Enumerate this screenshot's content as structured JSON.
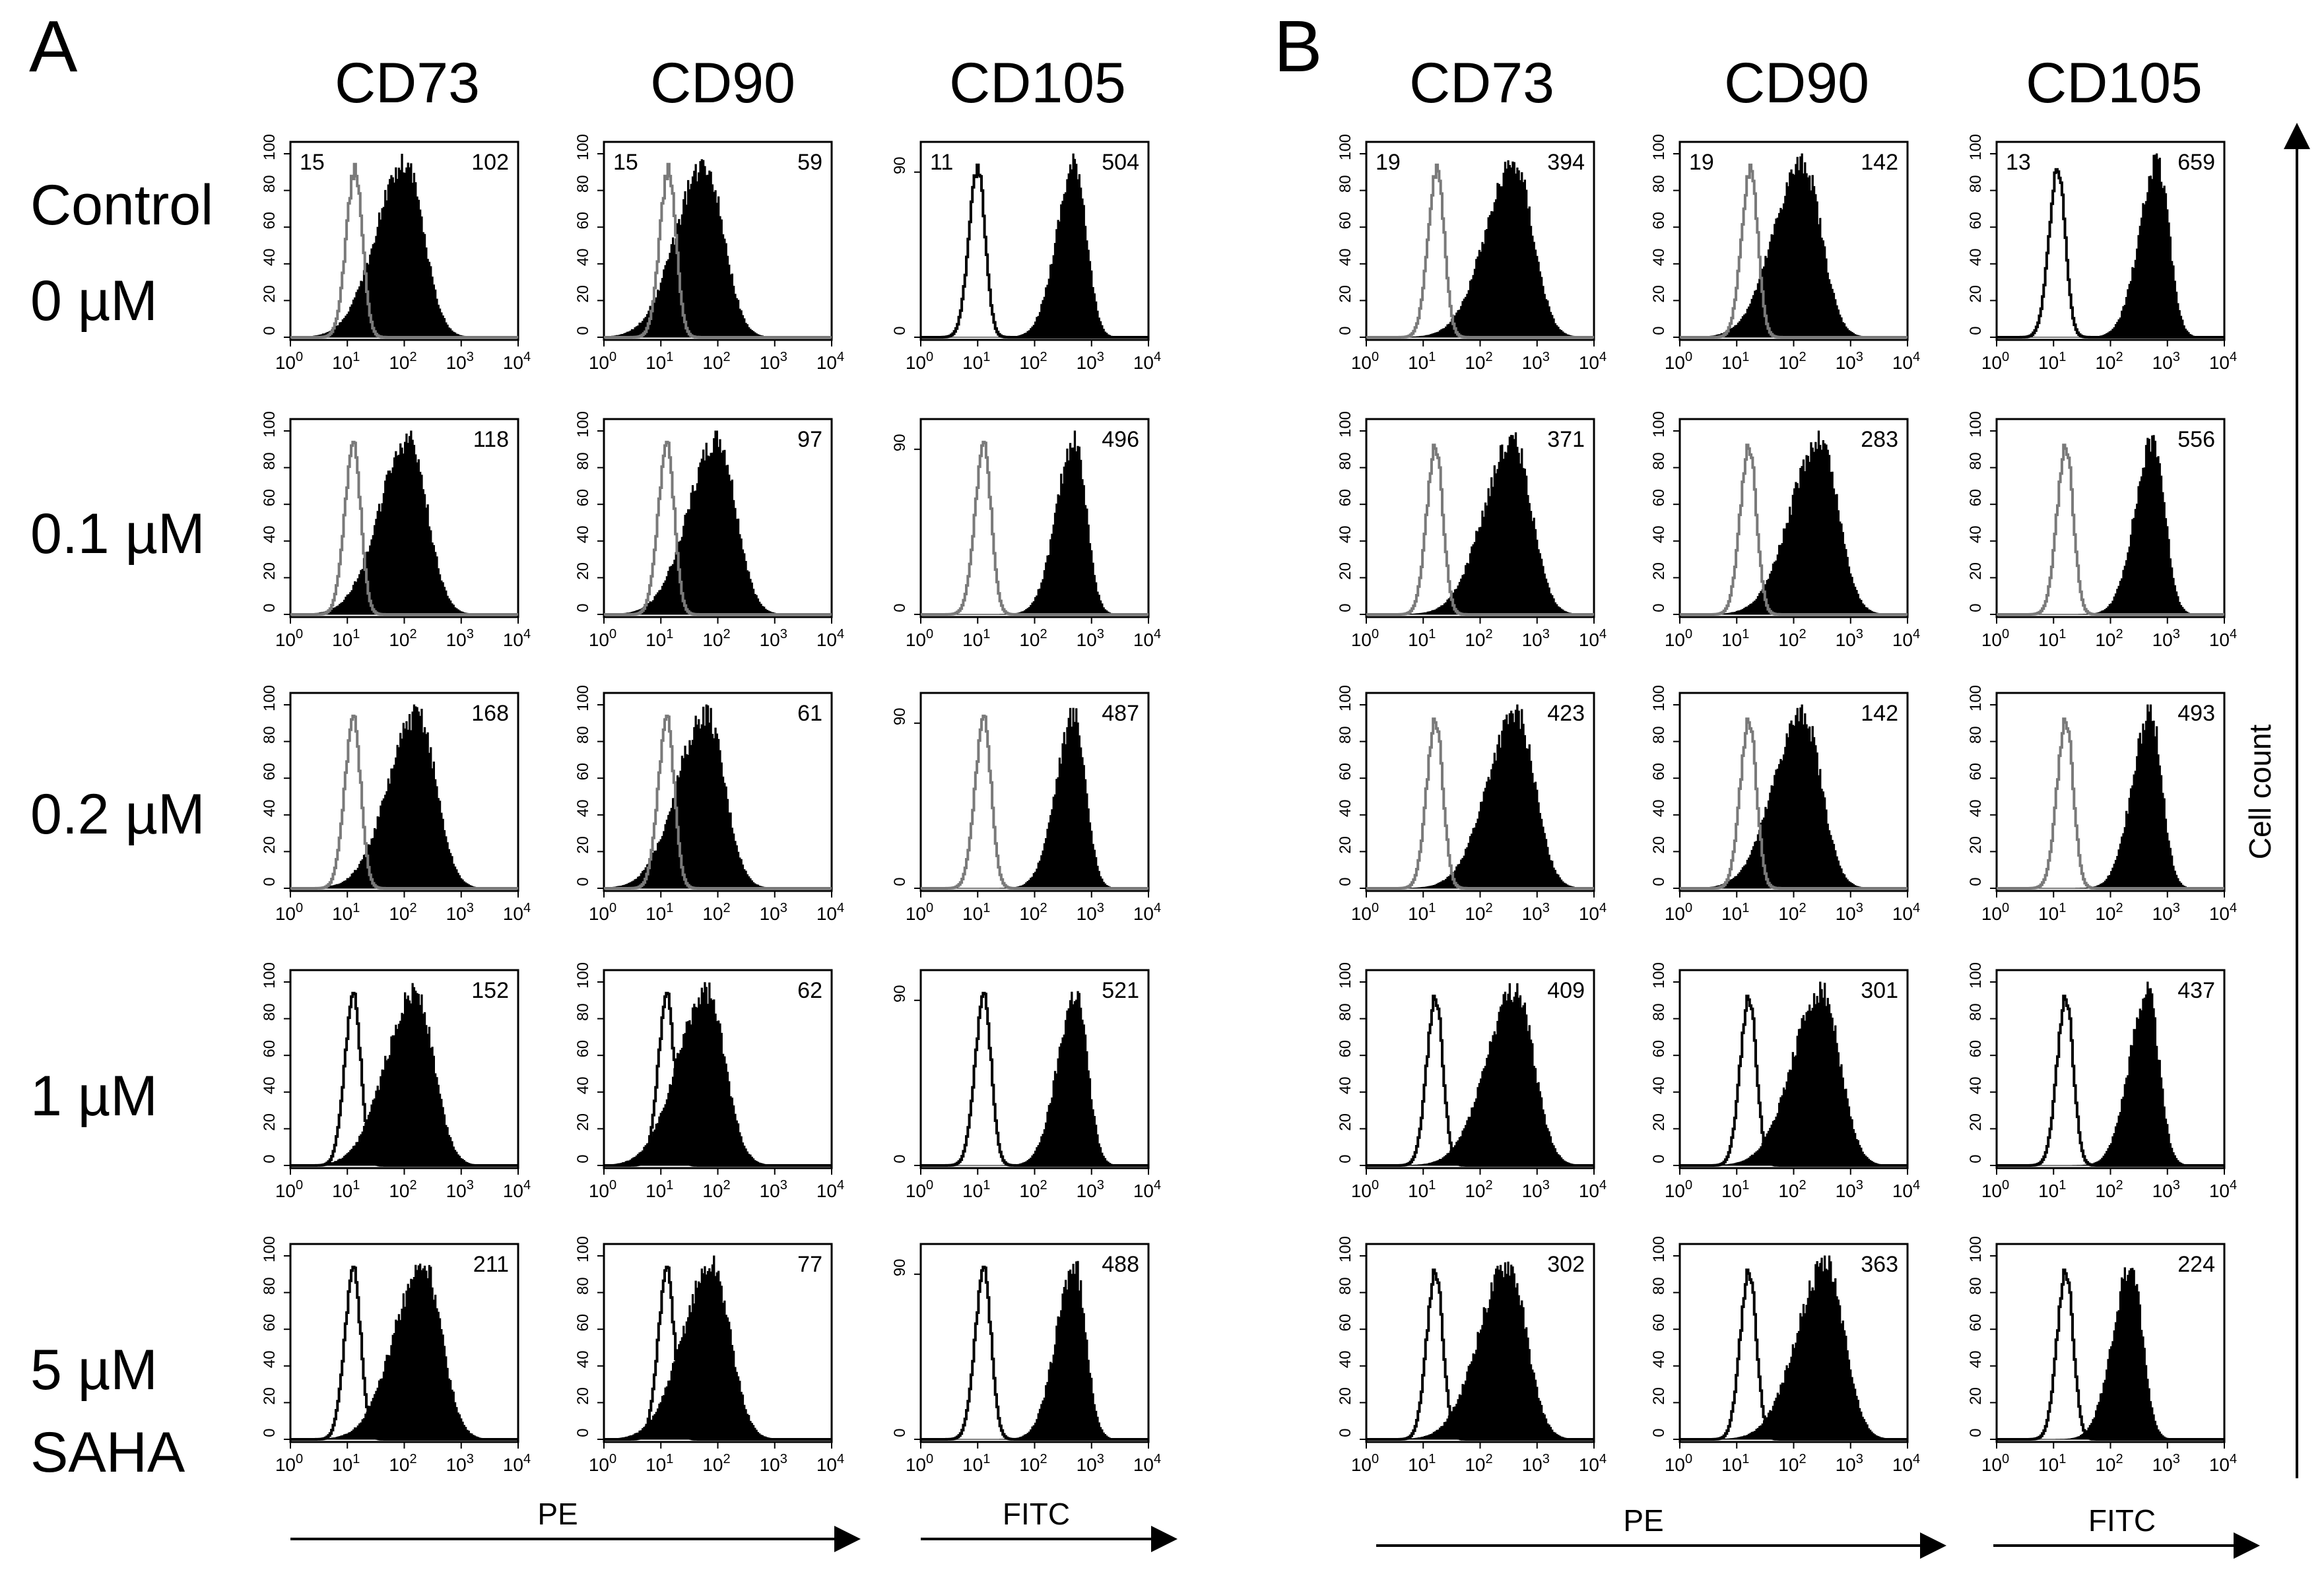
{
  "panels": [
    {
      "letter": "A",
      "columns": [
        "CD73",
        "CD90",
        "CD105"
      ]
    },
    {
      "letter": "B",
      "columns": [
        "CD73",
        "CD90",
        "CD105"
      ]
    }
  ],
  "row_labels": [
    [
      "Control",
      "0 µM"
    ],
    [
      "0.1 µM"
    ],
    [
      "0.2 µM"
    ],
    [
      "1 µM"
    ],
    [
      "5 µM",
      "SAHA"
    ]
  ],
  "axis_labels": {
    "pe": "PE",
    "fitc": "FITC",
    "cell_count": "Cell count",
    "x_ticks": [
      "0",
      "1",
      "2",
      "3",
      "4"
    ],
    "y_ticks_pe": [
      "0",
      "20",
      "40",
      "60",
      "80",
      "100"
    ],
    "y_ticks_cd105": [
      "0",
      "90"
    ]
  },
  "colors": {
    "filled": "#000000",
    "control_gray": "#7a7a7a",
    "control_black": "#000000",
    "frame": "#000000",
    "background": "#ffffff"
  },
  "chart_data": {
    "type": "histogram-grid",
    "x_axis": {
      "scale": "log10",
      "range": [
        1,
        10000
      ]
    },
    "y_axis": {
      "label": "Cell count",
      "range": [
        0,
        100
      ]
    },
    "cells": [
      {
        "panel": "A",
        "marker": "CD73",
        "row": 0,
        "control_mfi": "15",
        "sample_mfi": "102",
        "control_color": "gray"
      },
      {
        "panel": "A",
        "marker": "CD90",
        "row": 0,
        "control_mfi": "15",
        "sample_mfi": "59",
        "control_color": "gray"
      },
      {
        "panel": "A",
        "marker": "CD105",
        "row": 0,
        "control_mfi": "11",
        "sample_mfi": "504",
        "control_color": "black"
      },
      {
        "panel": "B",
        "marker": "CD73",
        "row": 0,
        "control_mfi": "19",
        "sample_mfi": "394",
        "control_color": "gray"
      },
      {
        "panel": "B",
        "marker": "CD90",
        "row": 0,
        "control_mfi": "19",
        "sample_mfi": "142",
        "control_color": "gray"
      },
      {
        "panel": "B",
        "marker": "CD105",
        "row": 0,
        "control_mfi": "13",
        "sample_mfi": "659",
        "control_color": "black"
      },
      {
        "panel": "A",
        "marker": "CD73",
        "row": 1,
        "control_mfi": "",
        "sample_mfi": "118",
        "control_color": "gray"
      },
      {
        "panel": "A",
        "marker": "CD90",
        "row": 1,
        "control_mfi": "",
        "sample_mfi": "97",
        "control_color": "gray"
      },
      {
        "panel": "A",
        "marker": "CD105",
        "row": 1,
        "control_mfi": "",
        "sample_mfi": "496",
        "control_color": "gray"
      },
      {
        "panel": "B",
        "marker": "CD73",
        "row": 1,
        "control_mfi": "",
        "sample_mfi": "371",
        "control_color": "gray"
      },
      {
        "panel": "B",
        "marker": "CD90",
        "row": 1,
        "control_mfi": "",
        "sample_mfi": "283",
        "control_color": "gray"
      },
      {
        "panel": "B",
        "marker": "CD105",
        "row": 1,
        "control_mfi": "",
        "sample_mfi": "556",
        "control_color": "gray"
      },
      {
        "panel": "A",
        "marker": "CD73",
        "row": 2,
        "control_mfi": "",
        "sample_mfi": "168",
        "control_color": "gray"
      },
      {
        "panel": "A",
        "marker": "CD90",
        "row": 2,
        "control_mfi": "",
        "sample_mfi": "61",
        "control_color": "gray"
      },
      {
        "panel": "A",
        "marker": "CD105",
        "row": 2,
        "control_mfi": "",
        "sample_mfi": "487",
        "control_color": "gray"
      },
      {
        "panel": "B",
        "marker": "CD73",
        "row": 2,
        "control_mfi": "",
        "sample_mfi": "423",
        "control_color": "gray"
      },
      {
        "panel": "B",
        "marker": "CD90",
        "row": 2,
        "control_mfi": "",
        "sample_mfi": "142",
        "control_color": "gray"
      },
      {
        "panel": "B",
        "marker": "CD105",
        "row": 2,
        "control_mfi": "",
        "sample_mfi": "493",
        "control_color": "gray"
      },
      {
        "panel": "A",
        "marker": "CD73",
        "row": 3,
        "control_mfi": "",
        "sample_mfi": "152",
        "control_color": "black"
      },
      {
        "panel": "A",
        "marker": "CD90",
        "row": 3,
        "control_mfi": "",
        "sample_mfi": "62",
        "control_color": "black"
      },
      {
        "panel": "A",
        "marker": "CD105",
        "row": 3,
        "control_mfi": "",
        "sample_mfi": "521",
        "control_color": "black"
      },
      {
        "panel": "B",
        "marker": "CD73",
        "row": 3,
        "control_mfi": "",
        "sample_mfi": "409",
        "control_color": "black"
      },
      {
        "panel": "B",
        "marker": "CD90",
        "row": 3,
        "control_mfi": "",
        "sample_mfi": "301",
        "control_color": "black"
      },
      {
        "panel": "B",
        "marker": "CD105",
        "row": 3,
        "control_mfi": "",
        "sample_mfi": "437",
        "control_color": "black"
      },
      {
        "panel": "A",
        "marker": "CD73",
        "row": 4,
        "control_mfi": "",
        "sample_mfi": "211",
        "control_color": "black"
      },
      {
        "panel": "A",
        "marker": "CD90",
        "row": 4,
        "control_mfi": "",
        "sample_mfi": "77",
        "control_color": "black"
      },
      {
        "panel": "A",
        "marker": "CD105",
        "row": 4,
        "control_mfi": "",
        "sample_mfi": "488",
        "control_color": "black"
      },
      {
        "panel": "B",
        "marker": "CD73",
        "row": 4,
        "control_mfi": "",
        "sample_mfi": "302",
        "control_color": "black"
      },
      {
        "panel": "B",
        "marker": "CD90",
        "row": 4,
        "control_mfi": "",
        "sample_mfi": "363",
        "control_color": "black"
      },
      {
        "panel": "B",
        "marker": "CD105",
        "row": 4,
        "control_mfi": "",
        "sample_mfi": "224",
        "control_color": "black"
      }
    ]
  }
}
